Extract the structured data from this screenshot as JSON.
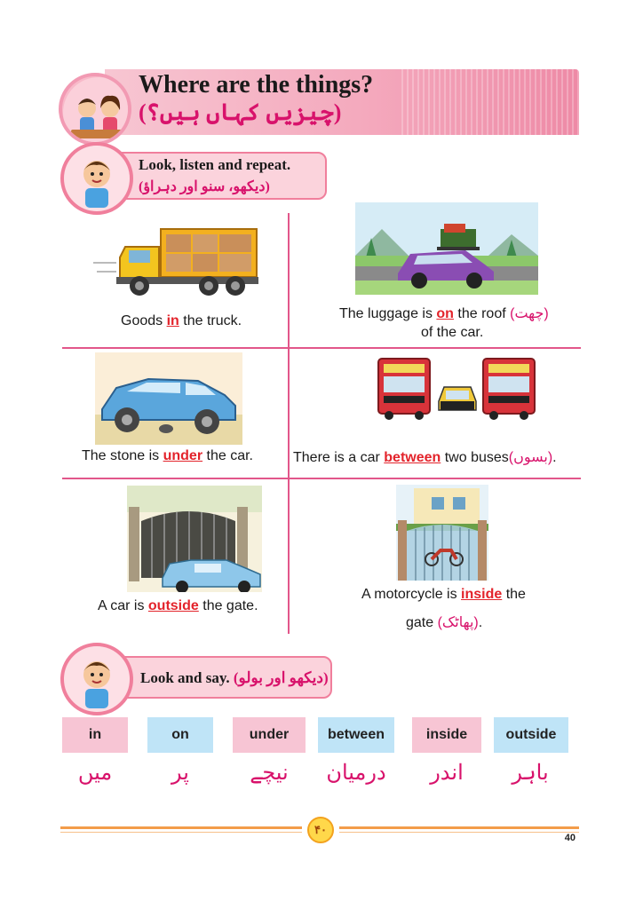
{
  "title": {
    "english": "Where are the things?",
    "urdu": "(چیزیں کہاں ہیں؟)"
  },
  "section1": {
    "heading": "Look, listen and repeat.",
    "urdu": "(دیکھو، سنو اور دہراؤ)"
  },
  "items": [
    {
      "pre": "Goods ",
      "keyword": "in",
      "post": " the truck."
    },
    {
      "pre": "The luggage is ",
      "keyword": "on",
      "post": " the roof ",
      "urdu": "(چھت)",
      "line2": "of the car."
    },
    {
      "pre": "The stone is ",
      "keyword": "under",
      "post": " the car."
    },
    {
      "pre": "There is a car ",
      "keyword": "between",
      "post": " two buses",
      "urdu": "(بسوں)",
      "end": "."
    },
    {
      "pre": "A car is ",
      "keyword": "outside",
      "post": " the gate."
    },
    {
      "pre": "A motorcycle is ",
      "keyword": "inside",
      "post": " the",
      "line2_pre": "gate ",
      "urdu": "(پھاٹک)",
      "end": "."
    }
  ],
  "section2": {
    "heading": "Look and say.",
    "urdu": "(دیکھو اور بولو)"
  },
  "words": [
    {
      "en": "in",
      "ur": "میں",
      "color": "pink"
    },
    {
      "en": "on",
      "ur": "پر",
      "color": "blue"
    },
    {
      "en": "under",
      "ur": "نیچے",
      "color": "pink"
    },
    {
      "en": "between",
      "ur": "درمیان",
      "color": "blue"
    },
    {
      "en": "inside",
      "ur": "اندر",
      "color": "pink"
    },
    {
      "en": "outside",
      "ur": "باہر",
      "color": "blue"
    }
  ],
  "footer": {
    "badge": "۴۰",
    "page_number": "40"
  },
  "colors": {
    "accent_pink": "#d8126b",
    "keyword_red": "#e3232b",
    "divider": "#e2568a",
    "footer_orange": "#f39c4a"
  }
}
